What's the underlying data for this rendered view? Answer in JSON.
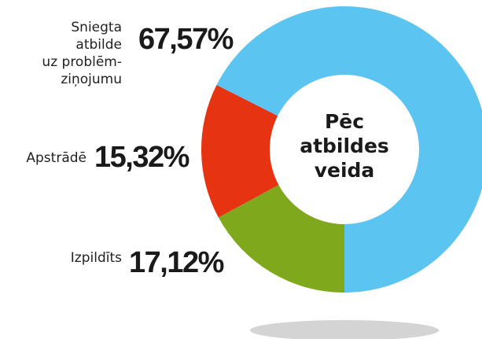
{
  "chart_data": {
    "type": "donut",
    "center_label": "Pēc\natbildes\nveida",
    "categories": [
      "Sniegta\natbilde\nuz problēm-\nziņojumu",
      "Apstrādē",
      "Izpildīts"
    ],
    "values": [
      67.57,
      15.32,
      17.12
    ],
    "value_labels": [
      "67,57%",
      "15,32%",
      "17,12%"
    ],
    "colors": [
      "#5bc4f1",
      "#e63312",
      "#7fa81c"
    ]
  }
}
